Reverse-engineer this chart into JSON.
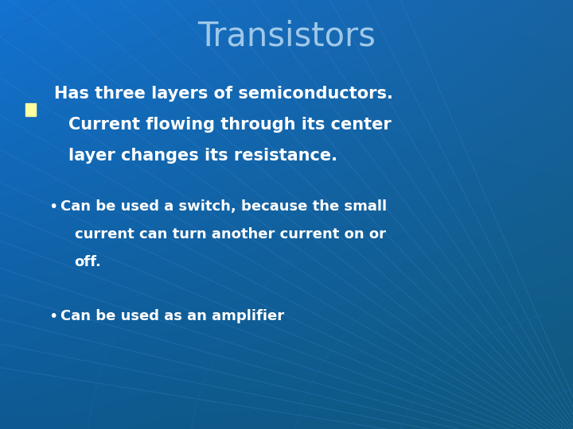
{
  "title": "Transistors",
  "title_color": "#9FC8E8",
  "title_fontsize": 30,
  "bg_color": "#1060C0",
  "bullet_square_color": "#FFFFA0",
  "bullet1_line1": "Has three layers of semiconductors.",
  "bullet1_line2": "Current flowing through its center",
  "bullet1_line3": "layer changes its resistance.",
  "sub_bullet1_line1": "Can be used a switch, because the small",
  "sub_bullet1_line2": "current can turn another current on or",
  "sub_bullet1_line3": "off.",
  "sub_bullet2_line1": "Can be used as an amplifier",
  "text_color": "#FFFFFF",
  "radial_color": "#4080CC",
  "radial_alpha": 0.35,
  "n_radial_lines": 22,
  "arc_color": "#2060A8",
  "n_arcs": 8
}
